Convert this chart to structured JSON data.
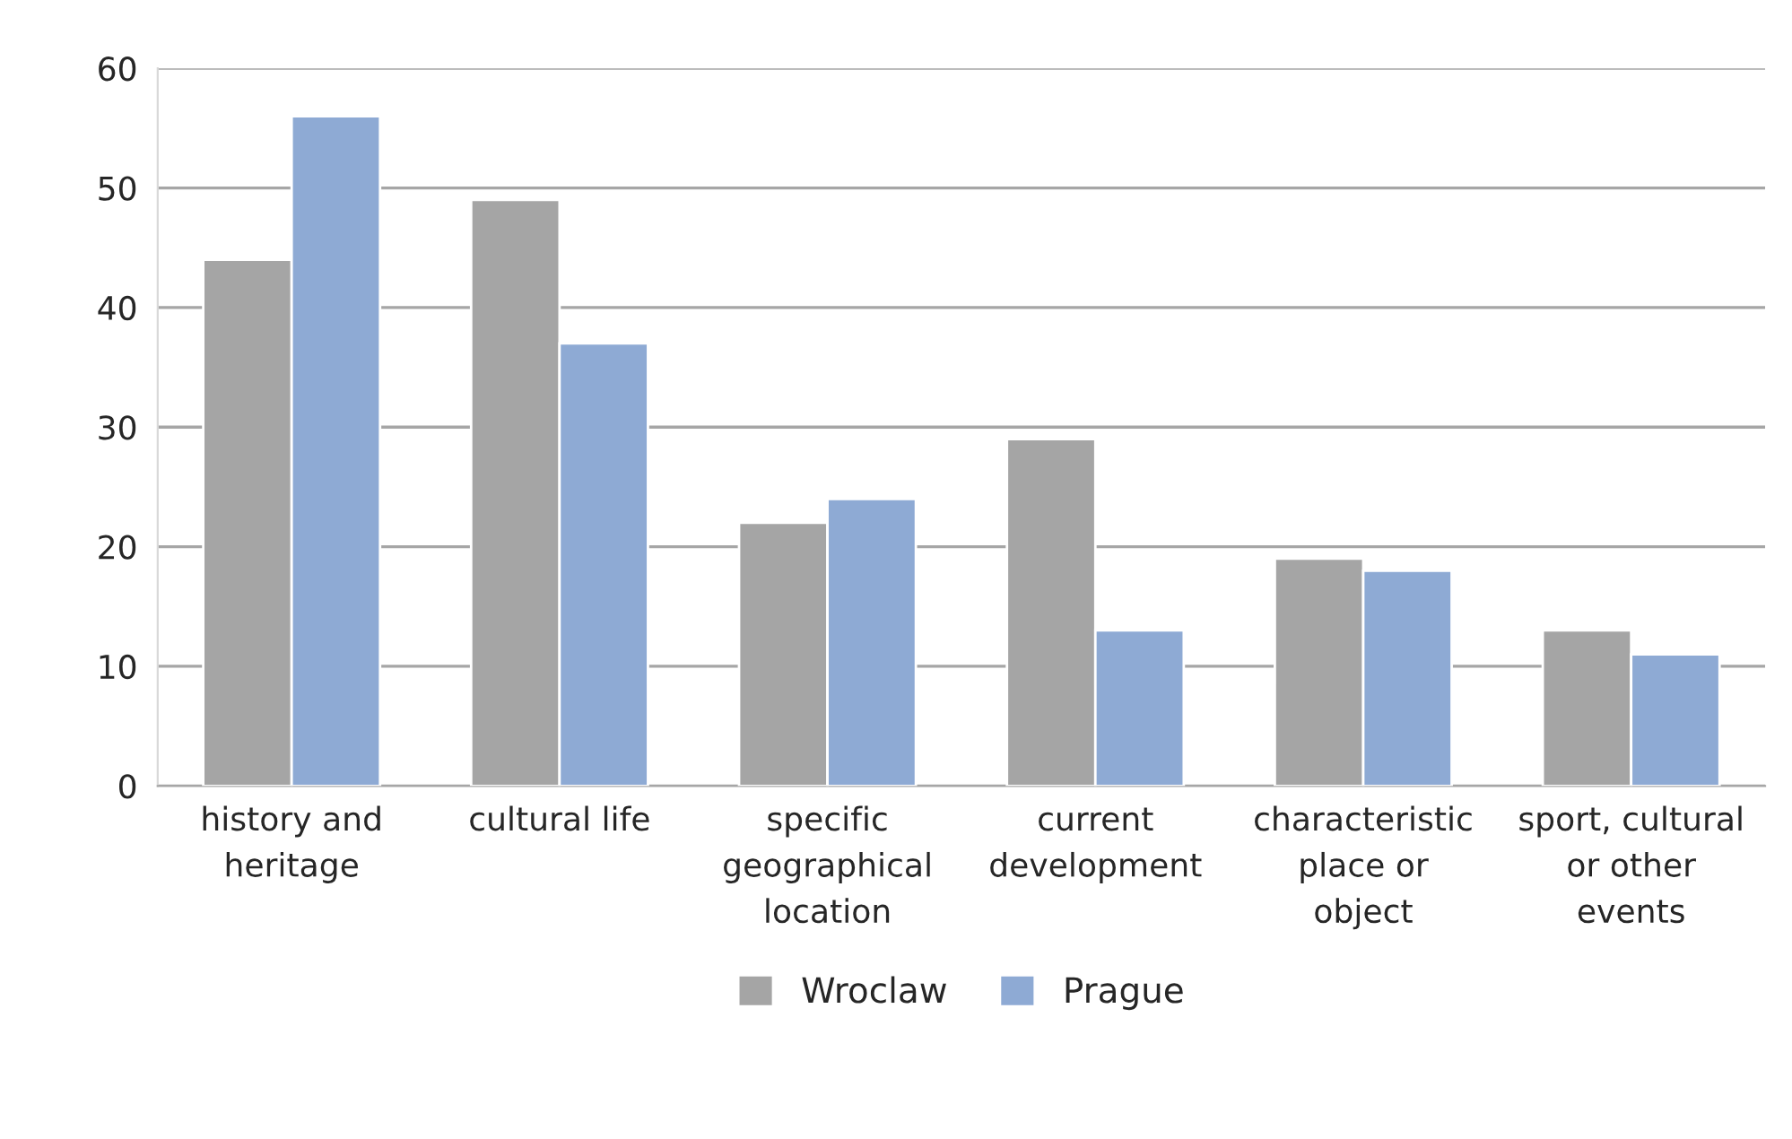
{
  "chart_data": {
    "type": "bar",
    "categories": [
      "history and\nheritage",
      "cultural life",
      "specific\ngeographical\nlocation",
      "current\ndevelopment",
      "characteristic\nplace or\nobject",
      "sport, cultural\nor other\nevents"
    ],
    "series": [
      {
        "name": "Wroclaw",
        "color": "#a5a5a5",
        "values": [
          44,
          49,
          22,
          29,
          19,
          13
        ]
      },
      {
        "name": "Prague",
        "color": "#8eaad4",
        "values": [
          56,
          37,
          24,
          13,
          18,
          11
        ]
      }
    ],
    "ylim": [
      0,
      60
    ],
    "yticks": [
      0,
      10,
      20,
      30,
      40,
      50,
      60
    ],
    "grid": "y",
    "legend": "bottom"
  }
}
